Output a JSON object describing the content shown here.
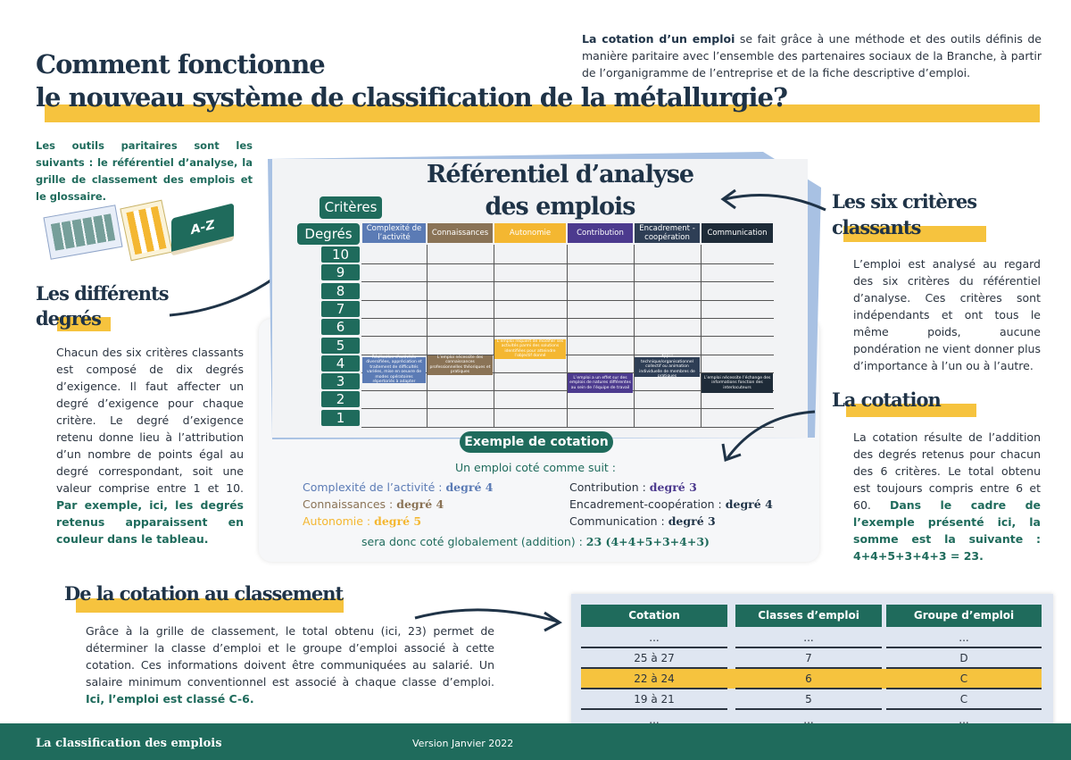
{
  "title": {
    "line1": "Comment fonctionne",
    "line2": "le nouveau système de classification de la métallurgie?"
  },
  "intro": {
    "bold": "La cotation d’un emploi",
    "rest": " se fait grâce à une méthode et des outils définis de manière paritaire avec l’ensemble des partenaires sociaux de la Branche, à partir de l’organigramme de l’entreprise et de la fiche descriptive d’emploi."
  },
  "tools_text": "Les outils paritaires sont les suivants : le référentiel d’analyse, la grille de classement des emplois et le glossaire.",
  "tools_icons": {
    "book_label": "A-Z"
  },
  "degres": {
    "heading1": "Les différents",
    "heading2": "degrés",
    "text": "Chacun des six critères classants est composé de dix degrés d’exigence. Il faut affecter un degré d’exigence pour chaque critère. Le degré d’exigence retenu donne lieu à l’attribution d’un nombre de points égal au degré correspondant, soit une valeur comprise entre 1 et 10. ",
    "bold": "Par exemple, ici, les degrés retenus apparaissent en couleur dans le tableau."
  },
  "referentiel": {
    "title1": "Référentiel d’analyse",
    "title2": "des emplois",
    "criteres_label": "Critères",
    "degres_label": "Degrés",
    "columns": [
      {
        "label": "Complexité de l’activité",
        "color": "#5b7bb5"
      },
      {
        "label": "Connaissances",
        "color": "#8a7356"
      },
      {
        "label": "Autonomie",
        "color": "#f4b731"
      },
      {
        "label": "Contribution",
        "color": "#4c3a8e"
      },
      {
        "label": "Encadrement - coopération",
        "color": "#2e3e55"
      },
      {
        "label": "Communication",
        "color": "#1e2b38"
      }
    ],
    "degrees": [
      "10",
      "9",
      "8",
      "7",
      "6",
      "5",
      "4",
      "3",
      "2",
      "1"
    ],
    "cells": [
      "Réalisation d’activités diversifiées, appréciation et traitement de difficultés variées, mise en oeuvre de modes opératoires répertoriés à adapter",
      "L’emploi nécessite des connaissances professionnelles théoriques et pratiques",
      "L’emploi requiert de modifier ses activités parmi des solutions identifiées pour atteindre l’objectif donné",
      "L’emploi a un effet sur des emplois de natures différentes au sein de l’équipe de travail",
      "Appui technique/organisationnel collectif ou animation individuelle de membres de pratiques",
      "L’emploi nécessite l’échange des informations fonction des interlocuteurs"
    ]
  },
  "exemple": {
    "pill": "Exemple de cotation",
    "intro": "Un emploi coté comme suit :",
    "items": [
      {
        "label": "Complexité de l’activité : ",
        "value": "degré 4",
        "color": "#5b7bb5"
      },
      {
        "label": "Connaissances : ",
        "value": "degré 4",
        "color": "#8a7356"
      },
      {
        "label": "Autonomie : ",
        "value": "degré 5",
        "color": "#f4b731"
      },
      {
        "label": "Contribution : ",
        "value": "degré 3",
        "color": "#4c3a8e"
      },
      {
        "label": "Encadrement-coopération : ",
        "value": "degré 4",
        "color": "#1f3347"
      },
      {
        "label": "Communication : ",
        "value": "degré 3",
        "color": "#1f3347"
      }
    ],
    "sum_label": "sera donc coté globalement (addition) : ",
    "sum_value": "23 (4+4+5+3+4+3)"
  },
  "criteres": {
    "heading1": "Les six critères",
    "heading2": "classants",
    "text": "L’emploi est analysé au regard des six critères du référentiel d’analyse. Ces critères sont indépendants et ont tous le même poids, aucune pondération ne vient donner plus d’importance à l’un ou à l’autre."
  },
  "cotation": {
    "heading": "La cotation",
    "text": "La cotation résulte de l’addition des degrés retenus pour chacun des 6 critères. Le total obtenu est toujours compris entre 6 et 60. ",
    "bold": "Dans le cadre de l’exemple présenté ici, la somme est la suivante : 4+4+5+3+4+3 = 23."
  },
  "classement": {
    "heading": "De la cotation au classement",
    "text": "Grâce à la grille de classement, le total obtenu (ici, 23) permet de déterminer la classe d’emploi et le groupe d’emploi associé à cette cotation. Ces informations doivent être communiquées au salarié. Un salaire minimum conventionnel est associé à chaque classe d’emploi. ",
    "bold": "Ici, l’emploi est classé C-6."
  },
  "table": {
    "headers": [
      "Cotation",
      "Classes d’emploi",
      "Groupe d’emploi"
    ],
    "rows": [
      [
        "...",
        "...",
        "..."
      ],
      [
        "25 à 27",
        "7",
        "D"
      ],
      [
        "22 à 24",
        "6",
        "C"
      ],
      [
        "19 à 21",
        "5",
        "C"
      ],
      [
        "...",
        "...",
        "..."
      ]
    ],
    "highlight_row": 2,
    "highlight_color": "#f6c33e"
  },
  "footer": {
    "left": "La classification des emplois",
    "center": "Version Janvier 2022"
  },
  "colors": {
    "green": "#1f6b5c",
    "yellow": "#f6c33e",
    "navy": "#1f3347"
  }
}
